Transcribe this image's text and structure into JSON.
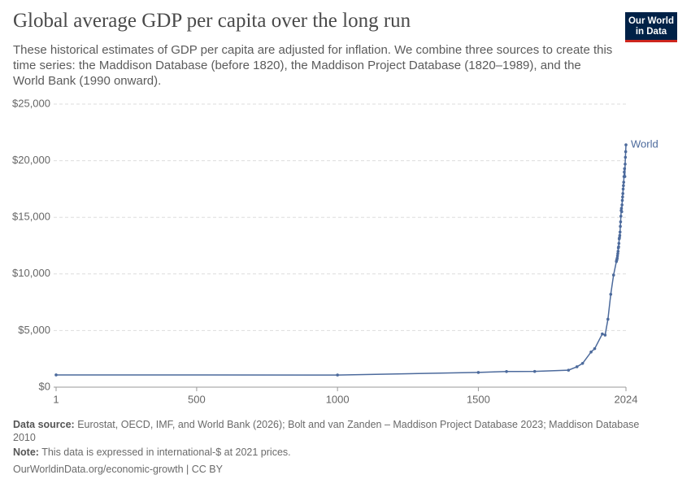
{
  "chart_data": {
    "type": "line",
    "title": "Global average GDP per capita over the long run",
    "subtitle": "These historical estimates of GDP per capita are adjusted for inflation. We combine three sources to create this time series: the Maddison Database (before 1820), the Maddison Project Database (1820–1989), and the World Bank (1990 onward).",
    "x": [
      1,
      1000,
      1500,
      1600,
      1700,
      1820,
      1850,
      1870,
      1900,
      1913,
      1940,
      1950,
      1960,
      1970,
      1980,
      1990,
      1991,
      1992,
      1993,
      1994,
      1995,
      1996,
      1997,
      1998,
      1999,
      2000,
      2001,
      2002,
      2003,
      2004,
      2005,
      2006,
      2007,
      2008,
      2009,
      2010,
      2011,
      2012,
      2013,
      2014,
      2015,
      2016,
      2017,
      2018,
      2019,
      2020,
      2021,
      2022,
      2023,
      2024
    ],
    "series": [
      {
        "name": "World",
        "color": "#4c6a9c",
        "values": [
          1080,
          1070,
          1300,
          1380,
          1390,
          1500,
          1800,
          2100,
          3100,
          3400,
          4700,
          4600,
          6000,
          8200,
          9900,
          11100,
          11200,
          11300,
          11400,
          11600,
          11800,
          12000,
          12300,
          12400,
          12700,
          13100,
          13200,
          13400,
          13700,
          14200,
          14600,
          15100,
          15600,
          15800,
          15500,
          16100,
          16500,
          16800,
          17100,
          17500,
          17800,
          18100,
          18600,
          19000,
          19300,
          18600,
          19700,
          20300,
          20800,
          21400
        ]
      }
    ],
    "xlim": [
      1,
      2024
    ],
    "xticks": [
      1,
      500,
      1000,
      1500,
      2024
    ],
    "ylim": [
      0,
      25000
    ],
    "yticks": [
      {
        "value": 0,
        "label": "$0"
      },
      {
        "value": 5000,
        "label": "$5,000"
      },
      {
        "value": 10000,
        "label": "$10,000"
      },
      {
        "value": 15000,
        "label": "$15,000"
      },
      {
        "value": 20000,
        "label": "$20,000"
      },
      {
        "value": 25000,
        "label": "$25,000"
      }
    ],
    "grid": true,
    "source_label": "Data source:",
    "source": "Eurostat, OECD, IMF, and World Bank (2026); Bolt and van Zanden – Maddison Project Database 2023; Maddison Database 2010",
    "note_label": "Note:",
    "note": "This data is expressed in international-$ at 2021 prices.",
    "url": "OurWorldinData.org/economic-growth | CC BY",
    "logo": [
      "Our World",
      "in Data"
    ]
  }
}
